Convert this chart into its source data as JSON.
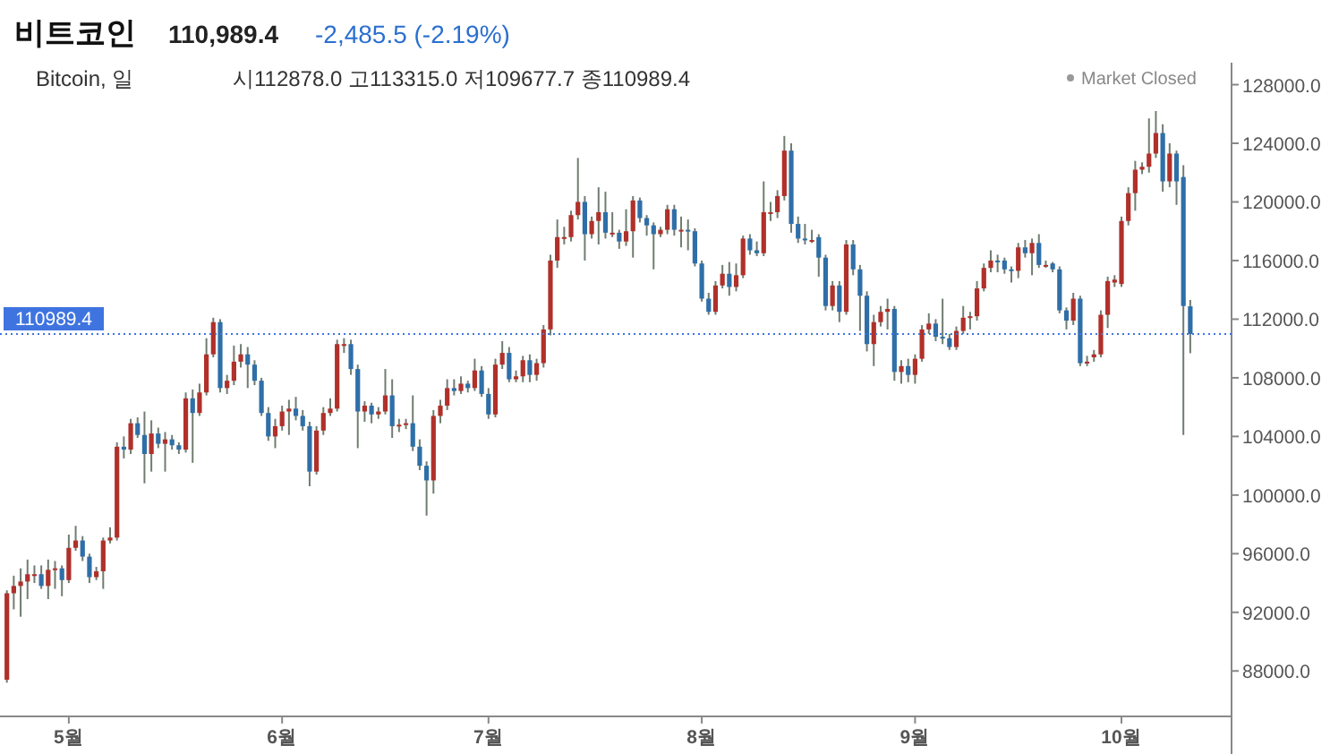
{
  "chart_data": {
    "type": "candlestick",
    "title": "비트코인",
    "subtitle": "110,989.4",
    "annotations": [
      "-2,485.5 (-2.19%)",
      "Bitcoin, 일",
      "시112878.0 고113315.0 저109677.7 종110989.4",
      "Market Closed"
    ],
    "x": [
      "--04-22",
      "--04-23",
      "--04-24",
      "--04-25",
      "--04-26",
      "--04-27",
      "--04-28",
      "--04-29",
      "--04-30",
      "--05-01",
      "--05-02",
      "--05-03",
      "--05-04",
      "--05-05",
      "--05-06",
      "--05-07",
      "--05-08",
      "--05-09",
      "--05-10",
      "--05-11",
      "--05-12",
      "--05-13",
      "--05-14",
      "--05-15",
      "--05-16",
      "--05-17",
      "--05-18",
      "--05-19",
      "--05-20",
      "--05-21",
      "--05-22",
      "--05-23",
      "--05-24",
      "--05-25",
      "--05-26",
      "--05-27",
      "--05-28",
      "--05-29",
      "--05-30",
      "--05-31",
      "--06-01",
      "--06-02",
      "--06-03",
      "--06-04",
      "--06-05",
      "--06-06",
      "--06-07",
      "--06-08",
      "--06-09",
      "--06-10",
      "--06-11",
      "--06-12",
      "--06-13",
      "--06-14",
      "--06-15",
      "--06-16",
      "--06-17",
      "--06-18",
      "--06-19",
      "--06-20",
      "--06-21",
      "--06-22",
      "--06-23",
      "--06-24",
      "--06-25",
      "--06-26",
      "--06-27",
      "--06-28",
      "--06-29",
      "--06-30",
      "--07-01",
      "--07-02",
      "--07-03",
      "--07-04",
      "--07-05",
      "--07-06",
      "--07-07",
      "--07-08",
      "--07-09",
      "--07-10",
      "--07-11",
      "--07-12",
      "--07-13",
      "--07-14",
      "--07-15",
      "--07-16",
      "--07-17",
      "--07-18",
      "--07-19",
      "--07-20",
      "--07-21",
      "--07-22",
      "--07-23",
      "--07-24",
      "--07-25",
      "--07-26",
      "--07-27",
      "--07-28",
      "--07-29",
      "--07-30",
      "--07-31",
      "--08-01",
      "--08-02",
      "--08-03",
      "--08-04",
      "--08-05",
      "--08-06",
      "--08-07",
      "--08-08",
      "--08-09",
      "--08-10",
      "--08-11",
      "--08-12",
      "--08-13",
      "--08-14",
      "--08-15",
      "--08-16",
      "--08-17",
      "--08-18",
      "--08-19",
      "--08-20",
      "--08-21",
      "--08-22",
      "--08-23",
      "--08-24",
      "--08-25",
      "--08-26",
      "--08-27",
      "--08-28",
      "--08-29",
      "--08-30",
      "--08-31",
      "--09-01",
      "--09-02",
      "--09-03",
      "--09-04",
      "--09-05",
      "--09-06",
      "--09-07",
      "--09-08",
      "--09-09",
      "--09-10",
      "--09-11",
      "--09-12",
      "--09-13",
      "--09-14",
      "--09-15",
      "--09-16",
      "--09-17",
      "--09-18",
      "--09-19",
      "--09-20",
      "--09-21",
      "--09-22",
      "--09-23",
      "--09-24",
      "--09-25",
      "--09-26",
      "--09-27",
      "--09-28",
      "--09-29",
      "--09-30",
      "--10-01",
      "--10-02",
      "--10-03",
      "--10-04",
      "--10-05",
      "--10-06",
      "--10-07",
      "--10-08",
      "--10-09",
      "--10-10",
      "--10-11"
    ],
    "ohlc": [
      [
        87400,
        93500,
        87200,
        93300
      ],
      [
        93300,
        94500,
        92200,
        93800
      ],
      [
        93800,
        95000,
        91700,
        94100
      ],
      [
        94100,
        95600,
        92900,
        94600
      ],
      [
        94600,
        95200,
        94000,
        94600
      ],
      [
        94600,
        95200,
        93600,
        93800
      ],
      [
        93800,
        95600,
        92900,
        94900
      ],
      [
        94900,
        95500,
        93600,
        95000
      ],
      [
        95000,
        95200,
        93100,
        94200
      ],
      [
        94200,
        97300,
        94000,
        96400
      ],
      [
        96400,
        97900,
        96200,
        96900
      ],
      [
        96900,
        97200,
        95500,
        95800
      ],
      [
        95800,
        96000,
        94000,
        94400
      ],
      [
        94400,
        95100,
        94200,
        94800
      ],
      [
        94800,
        97100,
        93600,
        96900
      ],
      [
        96900,
        97800,
        96700,
        97100
      ],
      [
        97100,
        103600,
        96900,
        103300
      ],
      [
        103300,
        104000,
        102500,
        103100
      ],
      [
        103100,
        105200,
        102800,
        104900
      ],
      [
        104900,
        105300,
        103900,
        104100
      ],
      [
        104100,
        105700,
        100800,
        102800
      ],
      [
        102800,
        105100,
        101600,
        104200
      ],
      [
        104200,
        104600,
        103200,
        103500
      ],
      [
        103500,
        104300,
        101600,
        103800
      ],
      [
        103800,
        104100,
        103100,
        103400
      ],
      [
        103400,
        103600,
        102800,
        103100
      ],
      [
        103100,
        107000,
        102900,
        106600
      ],
      [
        106600,
        107200,
        102200,
        105600
      ],
      [
        105600,
        107600,
        105400,
        107000
      ],
      [
        107000,
        110700,
        106800,
        109600
      ],
      [
        109600,
        112100,
        109400,
        111800
      ],
      [
        111800,
        112000,
        107000,
        107300
      ],
      [
        107300,
        108200,
        106900,
        107800
      ],
      [
        107800,
        110200,
        107500,
        109100
      ],
      [
        109100,
        110300,
        108700,
        109600
      ],
      [
        109600,
        110100,
        107300,
        108900
      ],
      [
        108900,
        109200,
        107500,
        107800
      ],
      [
        107800,
        108000,
        105400,
        105600
      ],
      [
        105600,
        106000,
        103700,
        104000
      ],
      [
        104000,
        105200,
        103200,
        104700
      ],
      [
        104700,
        106100,
        104400,
        105700
      ],
      [
        105700,
        106500,
        104100,
        105900
      ],
      [
        105900,
        106700,
        105100,
        105400
      ],
      [
        105400,
        105800,
        104400,
        104700
      ],
      [
        104700,
        105000,
        100600,
        101600
      ],
      [
        101600,
        104700,
        101400,
        104400
      ],
      [
        104400,
        106000,
        104100,
        105600
      ],
      [
        105600,
        106600,
        105400,
        105900
      ],
      [
        105900,
        110600,
        105700,
        110300
      ],
      [
        110300,
        110700,
        109700,
        110300
      ],
      [
        110300,
        110600,
        108200,
        108600
      ],
      [
        108600,
        108900,
        103200,
        105700
      ],
      [
        105700,
        106400,
        105000,
        106100
      ],
      [
        106100,
        106300,
        104900,
        105500
      ],
      [
        105500,
        106000,
        105200,
        105700
      ],
      [
        105700,
        108600,
        105500,
        106800
      ],
      [
        106800,
        107900,
        103900,
        104700
      ],
      [
        104700,
        105200,
        104300,
        104800
      ],
      [
        104800,
        105200,
        104500,
        104900
      ],
      [
        104900,
        106800,
        103000,
        103300
      ],
      [
        103300,
        103800,
        101700,
        102000
      ],
      [
        102000,
        102300,
        98600,
        101000
      ],
      [
        101000,
        105800,
        100100,
        105400
      ],
      [
        105400,
        106500,
        104900,
        106100
      ],
      [
        106100,
        107900,
        105800,
        107300
      ],
      [
        107300,
        107900,
        106800,
        107100
      ],
      [
        107100,
        108100,
        106900,
        107600
      ],
      [
        107600,
        107800,
        107000,
        107300
      ],
      [
        107300,
        109300,
        107100,
        108500
      ],
      [
        108500,
        108800,
        106700,
        106900
      ],
      [
        106900,
        107300,
        105200,
        105500
      ],
      [
        105500,
        109300,
        105300,
        108900
      ],
      [
        108900,
        110500,
        108600,
        109700
      ],
      [
        109700,
        110100,
        107700,
        107900
      ],
      [
        107900,
        108500,
        107700,
        108100
      ],
      [
        108100,
        109500,
        107700,
        109200
      ],
      [
        109200,
        109600,
        107700,
        108200
      ],
      [
        108200,
        109300,
        107800,
        109000
      ],
      [
        109000,
        111600,
        108700,
        111300
      ],
      [
        111300,
        116400,
        110900,
        116000
      ],
      [
        116000,
        118800,
        115500,
        117600
      ],
      [
        117600,
        118300,
        117100,
        117600
      ],
      [
        117600,
        119400,
        117300,
        119100
      ],
      [
        119100,
        123000,
        118800,
        120000
      ],
      [
        120000,
        120400,
        116000,
        117800
      ],
      [
        117800,
        119000,
        117500,
        118700
      ],
      [
        118700,
        121000,
        117100,
        119300
      ],
      [
        119300,
        120700,
        117500,
        117900
      ],
      [
        117900,
        119300,
        117600,
        117900
      ],
      [
        117900,
        118100,
        116800,
        117300
      ],
      [
        117300,
        119500,
        117000,
        118000
      ],
      [
        118000,
        120400,
        116200,
        120100
      ],
      [
        120100,
        120300,
        118600,
        118900
      ],
      [
        118900,
        119100,
        117700,
        118400
      ],
      [
        118400,
        118600,
        115400,
        117800
      ],
      [
        117800,
        118300,
        117600,
        118100
      ],
      [
        118100,
        119800,
        117800,
        119500
      ],
      [
        119500,
        119800,
        117700,
        118100
      ],
      [
        118100,
        119000,
        116900,
        118100
      ],
      [
        118100,
        118800,
        116700,
        118000
      ],
      [
        118000,
        118200,
        115600,
        115800
      ],
      [
        115800,
        116000,
        113200,
        113400
      ],
      [
        113400,
        113800,
        112300,
        112500
      ],
      [
        112500,
        114600,
        112300,
        114300
      ],
      [
        114300,
        115700,
        114100,
        115100
      ],
      [
        115100,
        115900,
        113600,
        114200
      ],
      [
        114200,
        115800,
        113900,
        115000
      ],
      [
        115000,
        117700,
        114800,
        117500
      ],
      [
        117500,
        117800,
        116400,
        116700
      ],
      [
        116700,
        117300,
        116300,
        116500
      ],
      [
        116500,
        121400,
        116300,
        119300
      ],
      [
        119300,
        120000,
        118700,
        119300
      ],
      [
        119300,
        120800,
        118900,
        120400
      ],
      [
        120400,
        124500,
        120100,
        123500
      ],
      [
        123500,
        124000,
        117900,
        118500
      ],
      [
        118500,
        119000,
        117200,
        117500
      ],
      [
        117500,
        118500,
        117100,
        117400
      ],
      [
        117400,
        118100,
        117200,
        117400
      ],
      [
        117600,
        117800,
        114900,
        116200
      ],
      [
        116200,
        116400,
        112600,
        112900
      ],
      [
        112900,
        114600,
        112600,
        114300
      ],
      [
        114300,
        114600,
        111800,
        112500
      ],
      [
        112500,
        117400,
        112300,
        117100
      ],
      [
        117100,
        117400,
        115000,
        115400
      ],
      [
        115400,
        115700,
        111200,
        113600
      ],
      [
        113600,
        113900,
        109800,
        110300
      ],
      [
        110300,
        112300,
        108800,
        111800
      ],
      [
        111800,
        112900,
        111500,
        112500
      ],
      [
        112500,
        113400,
        111300,
        112700
      ],
      [
        112700,
        112900,
        107800,
        108400
      ],
      [
        108400,
        109200,
        107600,
        108800
      ],
      [
        108800,
        109300,
        107700,
        108200
      ],
      [
        108200,
        109600,
        107600,
        109300
      ],
      [
        109300,
        111600,
        109100,
        111300
      ],
      [
        111300,
        112400,
        111000,
        111700
      ],
      [
        111700,
        112000,
        110500,
        110800
      ],
      [
        110800,
        113400,
        110300,
        110700
      ],
      [
        110700,
        111000,
        109900,
        110100
      ],
      [
        110100,
        111500,
        109900,
        111200
      ],
      [
        111200,
        112900,
        111000,
        112100
      ],
      [
        112100,
        112500,
        111300,
        112200
      ],
      [
        112200,
        114600,
        111900,
        114100
      ],
      [
        114100,
        115800,
        113900,
        115500
      ],
      [
        115500,
        116700,
        115200,
        116000
      ],
      [
        116000,
        116400,
        115200,
        115900
      ],
      [
        116000,
        116200,
        115100,
        115400
      ],
      [
        115400,
        115600,
        114500,
        115300
      ],
      [
        115300,
        117200,
        114800,
        116900
      ],
      [
        116900,
        117400,
        116200,
        116500
      ],
      [
        116500,
        117500,
        115000,
        117200
      ],
      [
        117200,
        117800,
        115500,
        115700
      ],
      [
        115700,
        116000,
        115500,
        115700
      ],
      [
        115800,
        115900,
        115200,
        115400
      ],
      [
        115400,
        115600,
        112400,
        112600
      ],
      [
        112600,
        112800,
        111300,
        111900
      ],
      [
        111900,
        113800,
        111600,
        113400
      ],
      [
        113400,
        113600,
        108800,
        109000
      ],
      [
        109000,
        109500,
        108800,
        109100
      ],
      [
        109400,
        109900,
        109100,
        109600
      ],
      [
        109600,
        112600,
        109400,
        112300
      ],
      [
        112300,
        114900,
        111400,
        114600
      ],
      [
        114500,
        115000,
        114200,
        114700
      ],
      [
        114400,
        119000,
        114200,
        118700
      ],
      [
        118700,
        121000,
        118400,
        120600
      ],
      [
        120600,
        122800,
        119400,
        122200
      ],
      [
        122200,
        122700,
        121900,
        122400
      ],
      [
        122400,
        125700,
        122000,
        123300
      ],
      [
        123300,
        126200,
        123000,
        124700
      ],
      [
        124700,
        125300,
        120700,
        121400
      ],
      [
        121400,
        124000,
        121000,
        123300
      ],
      [
        123300,
        123500,
        119800,
        121400
      ],
      [
        121700,
        122500,
        104100,
        112900
      ],
      [
        112878.0,
        113315.0,
        109677.7,
        110989.4
      ]
    ],
    "xlim": [
      "--04-21",
      "--10-17"
    ],
    "ylim": [
      84900,
      129500
    ],
    "xticks": [
      {
        "value": "--05-01",
        "label": "5월"
      },
      {
        "value": "--06-01",
        "label": "6월"
      },
      {
        "value": "--07-01",
        "label": "7월"
      },
      {
        "value": "--08-01",
        "label": "8월"
      },
      {
        "value": "--09-01",
        "label": "9월"
      },
      {
        "value": "--10-01",
        "label": "10월"
      }
    ],
    "yticks": [
      {
        "value": 88000,
        "label": "88000.0"
      },
      {
        "value": 92000,
        "label": "92000.0"
      },
      {
        "value": 96000,
        "label": "96000.0"
      },
      {
        "value": 100000,
        "label": "100000.0"
      },
      {
        "value": 104000,
        "label": "104000.0"
      },
      {
        "value": 108000,
        "label": "108000.0"
      },
      {
        "value": 112000,
        "label": "112000.0"
      },
      {
        "value": 116000,
        "label": "116000.0"
      },
      {
        "value": 120000,
        "label": "120000.0"
      },
      {
        "value": 124000,
        "label": "124000.0"
      },
      {
        "value": 128000,
        "label": "128000.0"
      }
    ],
    "ref_lines": [
      {
        "axis": "y",
        "value": 110989.4,
        "label": "110989.4",
        "color": "#3f74e0",
        "line_style": "dotted"
      }
    ]
  }
}
